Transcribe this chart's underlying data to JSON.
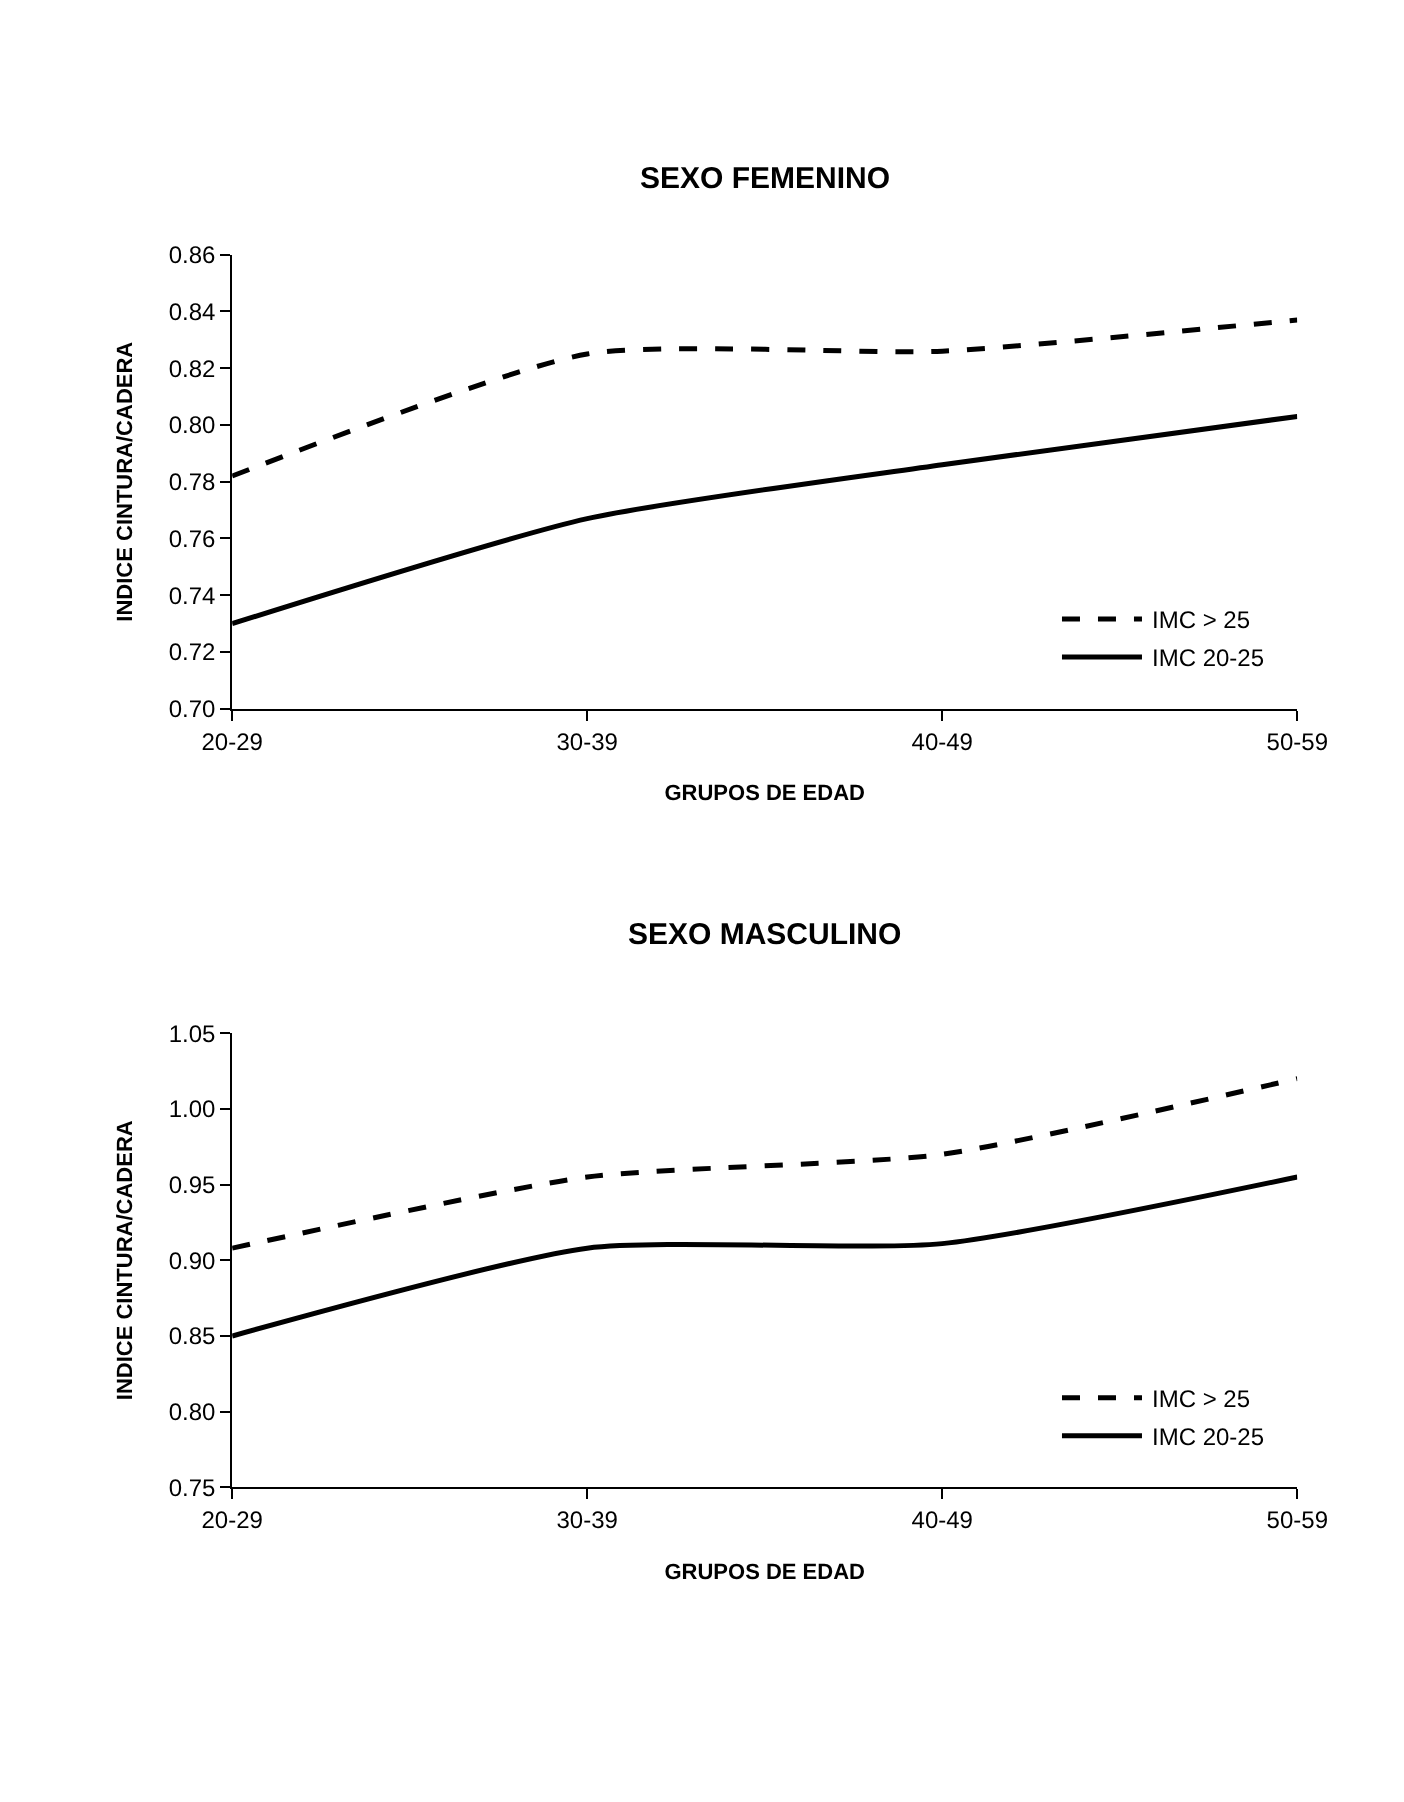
{
  "chart_data": [
    {
      "type": "line",
      "title": "SEXO FEMENINO",
      "xlabel": "GRUPOS DE EDAD",
      "ylabel": "INDICE CINTURA/CADERA",
      "categories": [
        "20-29",
        "30-39",
        "40-49",
        "50-59"
      ],
      "series": [
        {
          "name": "IMC > 25",
          "color": "#000000",
          "line_style": "dashed",
          "values": [
            0.782,
            0.825,
            0.826,
            0.837
          ]
        },
        {
          "name": "IMC 20-25",
          "color": "#000000",
          "line_style": "solid",
          "values": [
            0.73,
            0.767,
            0.786,
            0.803
          ]
        }
      ],
      "ylim": [
        0.7,
        0.86
      ],
      "yticks": [
        {
          "value": 0.7,
          "label": "0.70"
        },
        {
          "value": 0.72,
          "label": "0.72"
        },
        {
          "value": 0.74,
          "label": "0.74"
        },
        {
          "value": 0.76,
          "label": "0.76"
        },
        {
          "value": 0.78,
          "label": "0.78"
        },
        {
          "value": 0.8,
          "label": "0.80"
        },
        {
          "value": 0.82,
          "label": "0.82"
        },
        {
          "value": 0.84,
          "label": "0.84"
        },
        {
          "value": 0.86,
          "label": "0.86"
        }
      ],
      "legend": "bottom right",
      "marker": "none"
    },
    {
      "type": "line",
      "title": "SEXO MASCULINO",
      "xlabel": "GRUPOS DE EDAD",
      "ylabel": "INDICE CINTURA/CADERA",
      "categories": [
        "20-29",
        "30-39",
        "40-49",
        "50-59"
      ],
      "series": [
        {
          "name": "IMC > 25",
          "color": "#000000",
          "line_style": "dashed",
          "values": [
            0.908,
            0.955,
            0.97,
            1.02
          ]
        },
        {
          "name": "IMC 20-25",
          "color": "#000000",
          "line_style": "solid",
          "values": [
            0.85,
            0.908,
            0.911,
            0.955
          ]
        }
      ],
      "ylim": [
        0.75,
        1.05
      ],
      "yticks": [
        {
          "value": 0.75,
          "label": "0.75"
        },
        {
          "value": 0.8,
          "label": "0.80"
        },
        {
          "value": 0.85,
          "label": "0.85"
        },
        {
          "value": 0.9,
          "label": "0.90"
        },
        {
          "value": 0.95,
          "label": "0.95"
        },
        {
          "value": 1.0,
          "label": "1.00"
        },
        {
          "value": 1.05,
          "label": "1.05"
        }
      ],
      "legend": "bottom right",
      "marker": "none"
    }
  ]
}
